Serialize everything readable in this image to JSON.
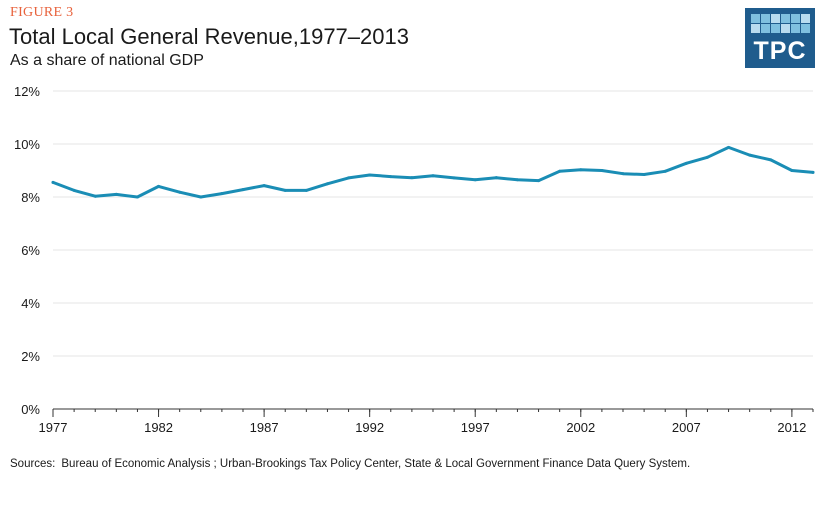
{
  "figure_label": "FIGURE 3",
  "title": "Total Local General Revenue,1977–2013",
  "subtitle": "As a share of national GDP",
  "logo": {
    "text": "TPC",
    "color": "#1f5c8d"
  },
  "sources": {
    "label": "Sources:",
    "text": "Bureau of Economic Analysis ; Urban-Brookings Tax Policy Center, State & Local Government Finance Data Query System."
  },
  "colors": {
    "line": "#1a8db5",
    "grid": "#e4e4e4",
    "axis": "#333333",
    "accent": "#e8623c"
  },
  "chart_data": {
    "type": "line",
    "title": "Total Local General Revenue,1977–2013",
    "subtitle": "As a share of national GDP",
    "xlabel": "",
    "ylabel": "",
    "xlim": [
      1977,
      2013
    ],
    "ylim": [
      0,
      12
    ],
    "y_ticks": [
      0,
      2,
      4,
      6,
      8,
      10,
      12
    ],
    "y_tick_labels": [
      "0%",
      "2%",
      "4%",
      "6%",
      "8%",
      "10%",
      "12%"
    ],
    "x_ticks": [
      1977,
      1982,
      1987,
      1992,
      1997,
      2002,
      2007,
      2012
    ],
    "x_tick_labels": [
      "1977",
      "1982",
      "1987",
      "1992",
      "1997",
      "2002",
      "2007",
      "2012"
    ],
    "grid": "horizontal",
    "series": [
      {
        "x": [
          1977,
          1978,
          1979,
          1980,
          1981,
          1982,
          1983,
          1984,
          1985,
          1986,
          1987,
          1988,
          1989,
          1990,
          1991,
          1992,
          1993,
          1994,
          1995,
          1996,
          1997,
          1998,
          1999,
          2000,
          2001,
          2002,
          2003,
          2004,
          2005,
          2006,
          2007,
          2008,
          2009,
          2010,
          2011,
          2012,
          2013
        ],
        "values": [
          8.55,
          8.25,
          8.03,
          8.1,
          8.0,
          8.4,
          8.18,
          8.0,
          8.13,
          8.28,
          8.43,
          8.25,
          8.25,
          8.5,
          8.72,
          8.83,
          8.77,
          8.73,
          8.8,
          8.72,
          8.65,
          8.73,
          8.65,
          8.62,
          8.97,
          9.03,
          9.0,
          8.88,
          8.85,
          8.97,
          9.27,
          9.5,
          9.87,
          9.58,
          9.4,
          9.0,
          8.93
        ]
      }
    ]
  }
}
